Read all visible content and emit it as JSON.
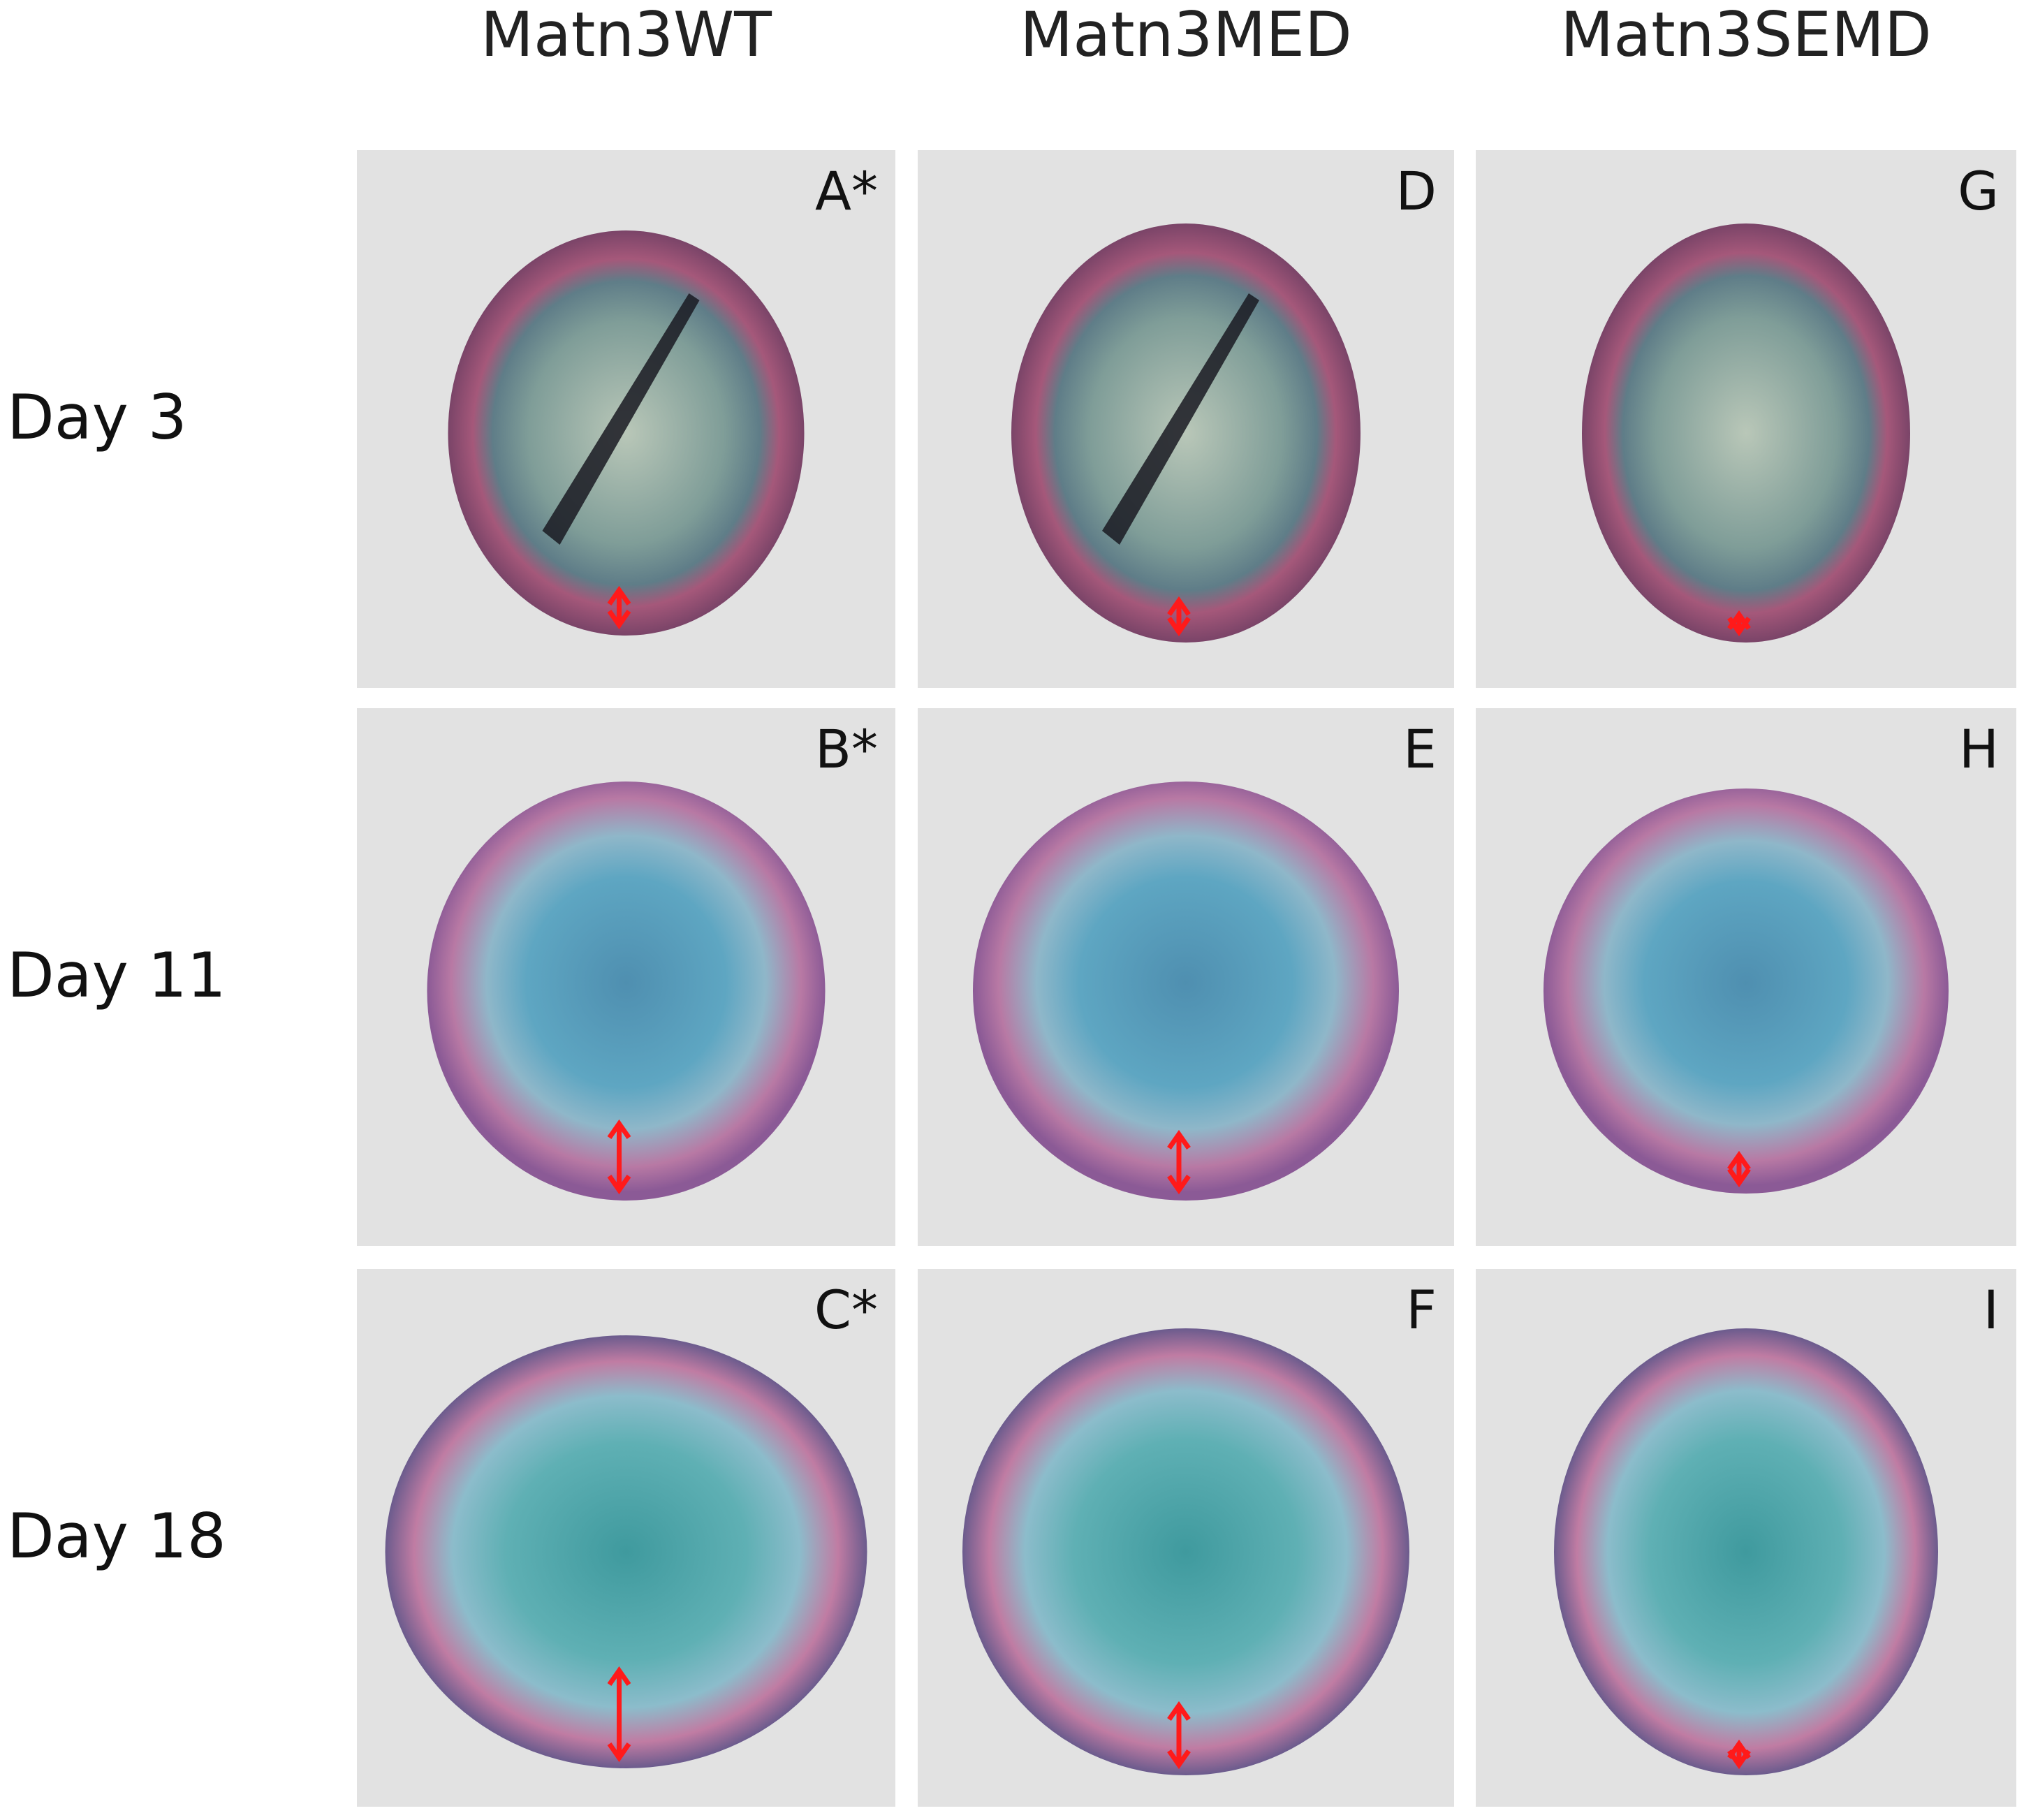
{
  "columns": [
    "Matn3WT",
    "Matn3MED",
    "Matn3SEMD"
  ],
  "rows": [
    "Day 3",
    "Day 11",
    "Day 18"
  ],
  "panels": [
    [
      "A*",
      "D",
      "G"
    ],
    [
      "B*",
      "E",
      "H"
    ],
    [
      "C*",
      "F",
      "I"
    ]
  ]
}
